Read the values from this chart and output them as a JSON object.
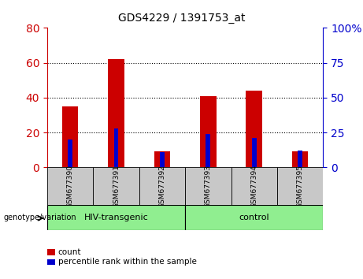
{
  "title": "GDS4229 / 1391753_at",
  "samples": [
    "GSM677390",
    "GSM677391",
    "GSM677392",
    "GSM677393",
    "GSM677394",
    "GSM677395"
  ],
  "count_values": [
    35,
    62,
    9,
    41,
    44,
    9
  ],
  "percentile_values": [
    20,
    28,
    11,
    24,
    21,
    12
  ],
  "group_configs": [
    {
      "label": "HIV-transgenic",
      "start": 0,
      "end": 2
    },
    {
      "label": "control",
      "start": 3,
      "end": 5
    }
  ],
  "group_label_prefix": "genotype/variation",
  "left_ylim": [
    0,
    80
  ],
  "right_ylim": [
    0,
    100
  ],
  "left_yticks": [
    0,
    20,
    40,
    60,
    80
  ],
  "right_yticks": [
    0,
    25,
    50,
    75,
    100
  ],
  "bar_color": "#CC0000",
  "percentile_color": "#0000CC",
  "bar_width": 0.35,
  "percentile_bar_width": 0.1,
  "bg_color": "#FFFFFF",
  "plot_bg": "#FFFFFF",
  "tick_label_bg": "#C8C8C8",
  "group_bg": "#90EE90",
  "legend_count_label": "count",
  "legend_pct_label": "percentile rank within the sample",
  "left_tick_color": "#CC0000",
  "right_tick_color": "#0000CC",
  "dotted_gridlines": [
    20,
    40,
    60
  ],
  "right_tick_labels": [
    "0",
    "25",
    "50",
    "75",
    "100%"
  ]
}
